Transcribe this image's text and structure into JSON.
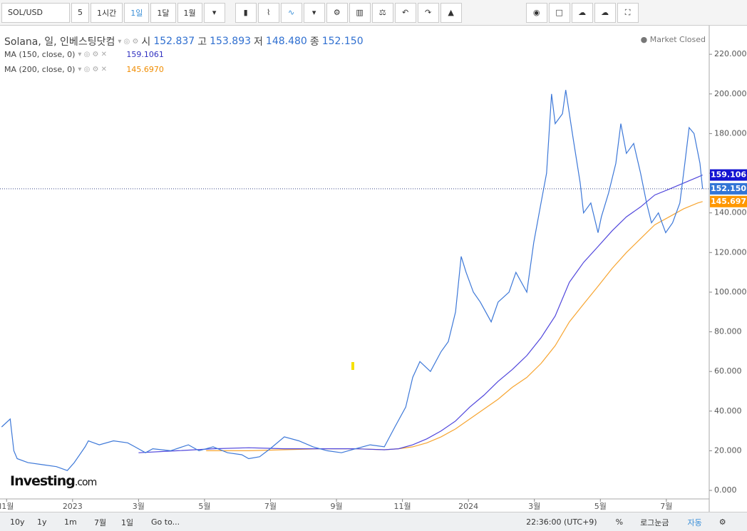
{
  "toolbar": {
    "symbol": "SOL/USD",
    "intervals": [
      "5",
      "1시간",
      "1일",
      "1달",
      "1월"
    ]
  },
  "legend": {
    "ohlc": [
      {
        "label": "시",
        "value": "152.837"
      },
      {
        "label": "고",
        "value": "153.893"
      },
      {
        "label": "저",
        "value": "148.480"
      },
      {
        "label": "종",
        "value": "152.150"
      }
    ],
    "status": "Market Closed"
  },
  "logo": {
    "name": "Investing",
    "suffix": ".com"
  },
  "chart_data": {
    "type": "line",
    "xlim": [
      -0.2,
      21.3
    ],
    "ylim": [
      -4.3,
      233
    ],
    "xticks": [
      {
        "value": 0,
        "label": "l1월"
      },
      {
        "value": 2,
        "label": "2023"
      },
      {
        "value": 4,
        "label": "3월"
      },
      {
        "value": 6,
        "label": "5월"
      },
      {
        "value": 8,
        "label": "7월"
      },
      {
        "value": 10,
        "label": "9월"
      },
      {
        "value": 12,
        "label": "11월"
      },
      {
        "value": 14,
        "label": "2024"
      },
      {
        "value": 16,
        "label": "3월"
      },
      {
        "value": 18,
        "label": "5월"
      },
      {
        "value": 20,
        "label": "7월"
      }
    ],
    "yticks": [
      {
        "value": 0,
        "label": "0.000"
      },
      {
        "value": 20,
        "label": "20.000"
      },
      {
        "value": 40,
        "label": "40.000"
      },
      {
        "value": 60,
        "label": "60.000"
      },
      {
        "value": 80,
        "label": "80.000"
      },
      {
        "value": 100,
        "label": "100.000"
      },
      {
        "value": 120,
        "label": "120.000"
      },
      {
        "value": 140,
        "label": "140.000"
      },
      {
        "value": 160,
        "label": "160.000"
      },
      {
        "value": 180,
        "label": "180.000"
      },
      {
        "value": 200,
        "label": "200.000"
      },
      {
        "value": 220,
        "label": "220.000"
      }
    ],
    "series": [
      {
        "name": "Solana, 일, 인베스팅닷컴",
        "color": "#3d78d8",
        "last_label": "152.150",
        "tag_color": "#3275d6",
        "x": [
          -0.15,
          0.11,
          0.22,
          0.32,
          0.65,
          1.08,
          1.51,
          1.84,
          2.05,
          2.38,
          2.48,
          2.81,
          3.24,
          3.67,
          3.89,
          4.21,
          4.43,
          4.97,
          5.51,
          5.83,
          6.26,
          6.7,
          7.13,
          7.34,
          7.67,
          7.99,
          8.42,
          8.86,
          9.29,
          9.72,
          10.15,
          10.58,
          11.02,
          11.45,
          11.77,
          12.1,
          12.31,
          12.53,
          12.85,
          13.17,
          13.39,
          13.61,
          13.78,
          13.93,
          14.15,
          14.36,
          14.69,
          14.9,
          15.23,
          15.44,
          15.77,
          15.98,
          16.2,
          16.37,
          16.52,
          16.63,
          16.85,
          16.95,
          17.17,
          17.39,
          17.49,
          17.71,
          17.93,
          18.03,
          18.25,
          18.47,
          18.62,
          18.79,
          19.01,
          19.22,
          19.4,
          19.55,
          19.76,
          19.98,
          20.19,
          20.41,
          20.56,
          20.69,
          20.84,
          21.02,
          21.1
        ],
        "values": [
          32,
          36,
          20,
          16,
          14,
          13,
          12,
          10,
          14,
          22,
          25,
          23,
          25,
          24,
          22,
          19,
          21,
          20,
          23,
          20,
          22,
          19,
          18,
          16,
          17,
          21,
          27,
          25,
          22,
          20,
          19,
          21,
          23,
          22,
          32,
          42,
          57,
          65,
          60,
          70,
          75,
          90,
          118,
          110,
          100,
          95,
          85,
          95,
          100,
          110,
          100,
          125,
          145,
          160,
          200,
          185,
          190,
          202,
          178,
          155,
          140,
          145,
          130,
          138,
          150,
          165,
          185,
          170,
          175,
          160,
          145,
          135,
          140,
          130,
          135,
          145,
          165,
          183,
          180,
          165,
          152.15
        ]
      },
      {
        "name": "MA (150, close, 0)",
        "color": "#5046dc",
        "legend_value": "159.1061",
        "last_label": "159.106",
        "tag_color": "#1414d2",
        "x": [
          4.0,
          5.18,
          6.26,
          7.34,
          8.42,
          9.5,
          10.58,
          11.45,
          11.88,
          12.31,
          12.74,
          13.17,
          13.61,
          14.04,
          14.47,
          14.9,
          15.33,
          15.77,
          16.2,
          16.63,
          17.06,
          17.49,
          17.93,
          18.36,
          18.79,
          19.22,
          19.65,
          20.09,
          20.52,
          20.95,
          21.1
        ],
        "values": [
          19,
          20,
          21,
          21.5,
          21,
          21,
          21,
          20.5,
          21,
          23,
          26,
          30,
          35,
          42,
          48,
          55,
          61,
          68,
          77,
          88,
          105,
          115,
          123,
          131,
          138,
          143,
          149,
          152,
          155,
          158,
          159.1061
        ]
      },
      {
        "name": "MA (200, close, 0)",
        "color": "#f7a531",
        "legend_value": "145.6970",
        "last_label": "145.697",
        "tag_color": "#ff9800",
        "x": [
          6.05,
          7.34,
          8.42,
          9.5,
          10.58,
          11.45,
          11.88,
          12.31,
          12.74,
          13.17,
          13.61,
          14.04,
          14.47,
          14.9,
          15.33,
          15.77,
          16.2,
          16.63,
          17.06,
          17.49,
          17.93,
          18.36,
          18.79,
          19.22,
          19.65,
          20.09,
          20.52,
          20.95,
          21.1
        ],
        "values": [
          20,
          20,
          20.5,
          21,
          21,
          20.5,
          21,
          22,
          24,
          27,
          31,
          36,
          41,
          46,
          52,
          57,
          64,
          73,
          85,
          94,
          103,
          112,
          120,
          127,
          134,
          138,
          142,
          145,
          145.697
        ]
      }
    ]
  },
  "bottom": {
    "ranges": [
      "10y",
      "1y",
      "1m",
      "7월",
      "1일"
    ],
    "goto": "Go to...",
    "time": "22:36:00 (UTC+9)",
    "percent": "%",
    "log": "로그눈금",
    "auto": "자동"
  }
}
